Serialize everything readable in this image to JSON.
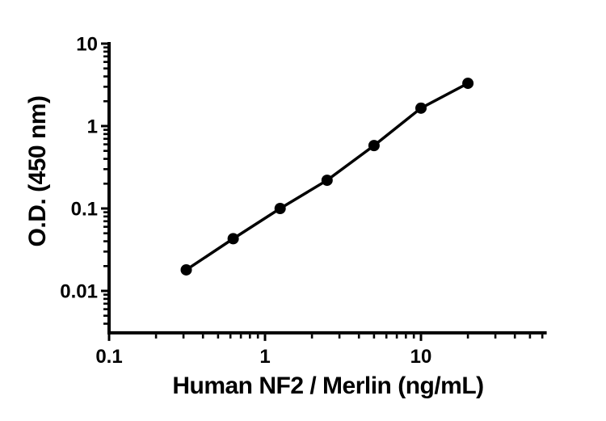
{
  "figure": {
    "background_color": "#ffffff",
    "foreground_color": "#000000"
  },
  "chart_data": {
    "type": "line",
    "xlabel": "Human NF2 / Merlin (ng/mL)",
    "ylabel": "O.D. (450 nm)",
    "x_scale": "log",
    "y_scale": "log",
    "x": [
      0.3125,
      0.625,
      1.25,
      2.5,
      5,
      10,
      20
    ],
    "y": [
      0.018,
      0.043,
      0.1,
      0.22,
      0.58,
      1.65,
      3.3
    ],
    "xlim": [
      0.1,
      64
    ],
    "ylim": [
      0.0031,
      10
    ],
    "x_major_ticks": [
      0.1,
      1,
      10
    ],
    "x_tick_labels": [
      "0.1",
      "1",
      "10"
    ],
    "y_major_ticks": [
      10,
      1,
      0.1,
      0.01
    ],
    "y_tick_labels": [
      "10",
      "1",
      "0.1",
      "0.01"
    ],
    "grid": false,
    "legend": false,
    "line_color": "#000000",
    "marker_color": "#000000",
    "marker": "circle"
  }
}
